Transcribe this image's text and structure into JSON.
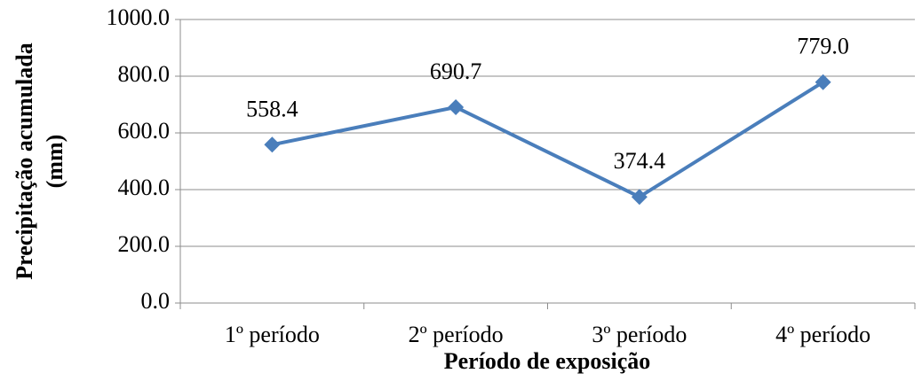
{
  "chart_data": {
    "type": "line",
    "xlabel": "Período de exposição",
    "ylabel": [
      "Precipitação acumulada",
      "(mm)"
    ],
    "categories": [
      "1º período",
      "2º período",
      "3º período",
      "4º período"
    ],
    "series": [
      {
        "color": "#4a7ebb",
        "values": [
          558.4,
          690.7,
          374.4,
          779.0
        ],
        "value_labels": [
          "558.4",
          "690.7",
          "374.4",
          "779.0"
        ]
      }
    ],
    "ylim": [
      0,
      1000
    ],
    "yticks": [
      {
        "value": 0,
        "label": "0.0"
      },
      {
        "value": 200,
        "label": "200.0"
      },
      {
        "value": 400,
        "label": "400.0"
      },
      {
        "value": 600,
        "label": "600.0"
      },
      {
        "value": 800,
        "label": "800.0"
      },
      {
        "value": 1000,
        "label": "1000.0"
      }
    ],
    "grid": true
  }
}
